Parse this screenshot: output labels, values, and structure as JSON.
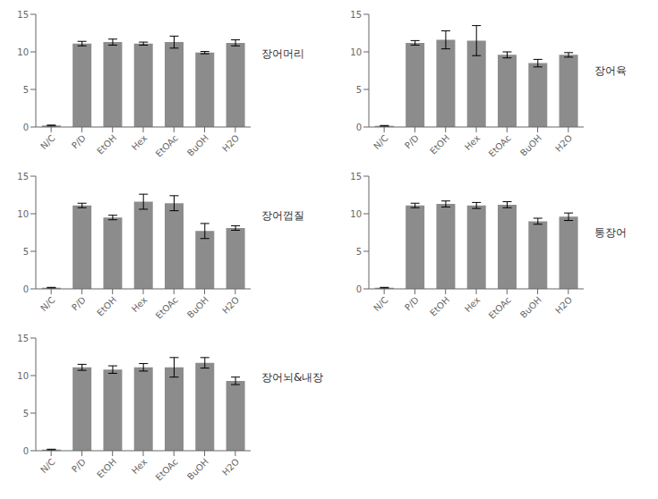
{
  "chart_data": [
    {
      "type": "bar",
      "title": "장어머리",
      "categories": [
        "N/C",
        "P/D",
        "EtOH",
        "Hex",
        "EtOAc",
        "BuOH",
        "H2O"
      ],
      "values": [
        0.2,
        11.1,
        11.3,
        11.1,
        11.3,
        9.9,
        11.2
      ],
      "errors": [
        0.05,
        0.3,
        0.4,
        0.2,
        0.8,
        0.15,
        0.4
      ],
      "color": "#8c8c8c",
      "ylim": [
        0,
        15
      ],
      "yticks": [
        0,
        5,
        10,
        15
      ]
    },
    {
      "type": "bar",
      "title": "장어육",
      "categories": [
        "N/C",
        "P/D",
        "EtOH",
        "Hex",
        "EtOAc",
        "BuOH",
        "H2O"
      ],
      "values": [
        0.15,
        11.2,
        11.6,
        11.5,
        9.6,
        8.5,
        9.6
      ],
      "errors": [
        0.05,
        0.3,
        1.2,
        2.0,
        0.4,
        0.5,
        0.3
      ],
      "color": "#8c8c8c",
      "ylim": [
        0,
        15
      ],
      "yticks": [
        0,
        5,
        10,
        15
      ]
    },
    {
      "type": "bar",
      "title": "장어껍질",
      "categories": [
        "N/C",
        "P/D",
        "EtOH",
        "Hex",
        "EtOAc",
        "BuOH",
        "H2O"
      ],
      "values": [
        0.15,
        11.1,
        9.5,
        11.6,
        11.4,
        7.7,
        8.1
      ],
      "errors": [
        0.05,
        0.3,
        0.3,
        1.0,
        1.0,
        1.0,
        0.3
      ],
      "color": "#8c8c8c",
      "ylim": [
        0,
        15
      ],
      "yticks": [
        0,
        5,
        10,
        15
      ]
    },
    {
      "type": "bar",
      "title": "통장어",
      "categories": [
        "N/C",
        "P/D",
        "EtOH",
        "Hex",
        "EtOAc",
        "BuOH",
        "H2O"
      ],
      "values": [
        0.15,
        11.1,
        11.3,
        11.1,
        11.2,
        9.0,
        9.6
      ],
      "errors": [
        0.05,
        0.3,
        0.4,
        0.4,
        0.4,
        0.4,
        0.5
      ],
      "color": "#8c8c8c",
      "ylim": [
        0,
        15
      ],
      "yticks": [
        0,
        5,
        10,
        15
      ]
    },
    {
      "type": "bar",
      "title": "장어뇌&내장",
      "categories": [
        "N/C",
        "P/D",
        "EtOH",
        "Hex",
        "EtOAc",
        "BuOH",
        "H2O"
      ],
      "values": [
        0.15,
        11.1,
        10.8,
        11.1,
        11.1,
        11.7,
        9.3
      ],
      "errors": [
        0.05,
        0.4,
        0.5,
        0.5,
        1.3,
        0.7,
        0.5
      ],
      "color": "#8c8c8c",
      "ylim": [
        0,
        15
      ],
      "yticks": [
        0,
        5,
        10,
        15
      ]
    }
  ]
}
